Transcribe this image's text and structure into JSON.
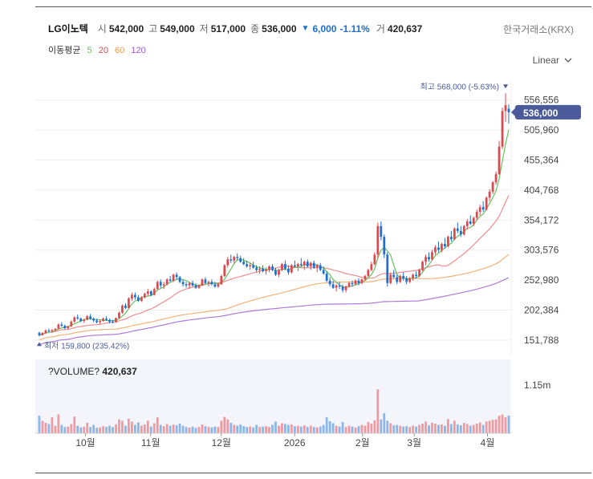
{
  "stock": {
    "name": "LG이노텍",
    "open_label": "시",
    "open": "542,000",
    "high_label": "고",
    "high": "549,000",
    "low_label": "저",
    "low": "517,000",
    "close_label": "종",
    "close": "536,000",
    "change": "6,000",
    "change_pct": "-1.11%",
    "volume_label": "거",
    "volume": "420,637"
  },
  "exchange": "한국거래소(KRX)",
  "ma_legend": {
    "label": "이동평균",
    "periods": [
      "5",
      "20",
      "60",
      "120"
    ]
  },
  "scale_button": "Linear",
  "colors": {
    "up": "#e0484f",
    "down": "#1f6fd1",
    "ma5": "#65c15e",
    "ma20": "#ef8c8e",
    "ma60": "#f2b27a",
    "ma120": "#b07ad8",
    "accent": "#4a5a9a"
  },
  "chart_data": {
    "type": "candlestick",
    "y_ticks": [
      "556,556",
      "505,960",
      "455,364",
      "404,768",
      "354,172",
      "303,576",
      "252,980",
      "202,384",
      "151,788"
    ],
    "y_range": [
      130000,
      590000
    ],
    "x_labels": [
      "10월",
      "11월",
      "12월",
      "2026",
      "2월",
      "3월",
      "4월"
    ],
    "current_price": "536,000",
    "max_annotation": "최고 568,000 (-5.63%)",
    "min_annotation": "최저 159,800 (235.42%)",
    "volume_title": "?VOLUME?",
    "volume_value": "420,637",
    "volume_tick": "1.15m",
    "volume_ymax": 1150000,
    "candles": [
      [
        164000,
        166000,
        158000,
        160000
      ],
      [
        160000,
        165000,
        159800,
        164000
      ],
      [
        164000,
        170000,
        162000,
        168000
      ],
      [
        168000,
        171000,
        165000,
        167000
      ],
      [
        167000,
        170000,
        164000,
        169000
      ],
      [
        169000,
        172000,
        167000,
        171000
      ],
      [
        171000,
        180000,
        170000,
        178000
      ],
      [
        178000,
        182000,
        174000,
        176000
      ],
      [
        176000,
        178000,
        170000,
        172000
      ],
      [
        172000,
        176000,
        170000,
        175000
      ],
      [
        175000,
        185000,
        174000,
        183000
      ],
      [
        183000,
        192000,
        181000,
        190000
      ],
      [
        190000,
        195000,
        186000,
        188000
      ],
      [
        188000,
        190000,
        182000,
        184000
      ],
      [
        184000,
        188000,
        181000,
        186000
      ],
      [
        186000,
        194000,
        185000,
        192000
      ],
      [
        192000,
        196000,
        186000,
        188000
      ],
      [
        188000,
        190000,
        182000,
        185000
      ],
      [
        185000,
        188000,
        180000,
        182000
      ],
      [
        182000,
        186000,
        179000,
        184000
      ],
      [
        184000,
        190000,
        183000,
        188000
      ],
      [
        188000,
        192000,
        184000,
        186000
      ],
      [
        186000,
        188000,
        180000,
        183000
      ],
      [
        183000,
        186000,
        180000,
        182000
      ],
      [
        182000,
        190000,
        181000,
        189000
      ],
      [
        189000,
        200000,
        188000,
        198000
      ],
      [
        198000,
        212000,
        196000,
        210000
      ],
      [
        210000,
        214000,
        204000,
        206000
      ],
      [
        206000,
        224000,
        205000,
        222000
      ],
      [
        222000,
        232000,
        218000,
        228000
      ],
      [
        228000,
        232000,
        220000,
        224000
      ],
      [
        224000,
        228000,
        216000,
        218000
      ],
      [
        218000,
        226000,
        216000,
        224000
      ],
      [
        224000,
        232000,
        222000,
        230000
      ],
      [
        230000,
        238000,
        226000,
        234000
      ],
      [
        234000,
        236000,
        226000,
        228000
      ],
      [
        228000,
        240000,
        227000,
        238000
      ],
      [
        238000,
        252000,
        236000,
        250000
      ],
      [
        250000,
        254000,
        240000,
        244000
      ],
      [
        244000,
        250000,
        238000,
        246000
      ],
      [
        246000,
        256000,
        244000,
        254000
      ],
      [
        254000,
        260000,
        250000,
        252000
      ],
      [
        252000,
        264000,
        250000,
        262000
      ],
      [
        262000,
        266000,
        254000,
        258000
      ],
      [
        258000,
        260000,
        248000,
        250000
      ],
      [
        250000,
        254000,
        242000,
        246000
      ],
      [
        246000,
        250000,
        240000,
        244000
      ],
      [
        244000,
        250000,
        238000,
        248000
      ],
      [
        248000,
        252000,
        242000,
        244000
      ],
      [
        244000,
        248000,
        238000,
        240000
      ],
      [
        240000,
        246000,
        238000,
        244000
      ],
      [
        244000,
        256000,
        243000,
        254000
      ],
      [
        254000,
        258000,
        246000,
        248000
      ],
      [
        248000,
        252000,
        242000,
        250000
      ],
      [
        250000,
        254000,
        244000,
        246000
      ],
      [
        246000,
        250000,
        240000,
        242000
      ],
      [
        242000,
        248000,
        240000,
        246000
      ],
      [
        246000,
        262000,
        245000,
        260000
      ],
      [
        260000,
        280000,
        258000,
        278000
      ],
      [
        278000,
        292000,
        274000,
        288000
      ],
      [
        288000,
        296000,
        282000,
        286000
      ],
      [
        286000,
        294000,
        280000,
        292000
      ],
      [
        292000,
        298000,
        286000,
        290000
      ],
      [
        290000,
        294000,
        282000,
        284000
      ],
      [
        284000,
        290000,
        278000,
        280000
      ],
      [
        280000,
        286000,
        274000,
        276000
      ],
      [
        276000,
        282000,
        270000,
        278000
      ],
      [
        278000,
        284000,
        272000,
        274000
      ],
      [
        274000,
        278000,
        266000,
        270000
      ],
      [
        270000,
        276000,
        264000,
        272000
      ],
      [
        272000,
        278000,
        266000,
        268000
      ],
      [
        268000,
        274000,
        262000,
        270000
      ],
      [
        270000,
        278000,
        266000,
        276000
      ],
      [
        276000,
        280000,
        268000,
        270000
      ],
      [
        270000,
        274000,
        260000,
        262000
      ],
      [
        262000,
        272000,
        258000,
        270000
      ],
      [
        270000,
        282000,
        268000,
        280000
      ],
      [
        280000,
        286000,
        270000,
        272000
      ],
      [
        272000,
        278000,
        262000,
        266000
      ],
      [
        266000,
        280000,
        264000,
        278000
      ],
      [
        278000,
        286000,
        274000,
        276000
      ],
      [
        276000,
        282000,
        268000,
        280000
      ],
      [
        280000,
        290000,
        276000,
        278000
      ],
      [
        278000,
        286000,
        270000,
        284000
      ],
      [
        284000,
        288000,
        274000,
        276000
      ],
      [
        276000,
        284000,
        270000,
        282000
      ],
      [
        282000,
        286000,
        272000,
        274000
      ],
      [
        274000,
        280000,
        266000,
        278000
      ],
      [
        278000,
        282000,
        268000,
        270000
      ],
      [
        270000,
        276000,
        262000,
        264000
      ],
      [
        264000,
        268000,
        250000,
        252000
      ],
      [
        252000,
        258000,
        242000,
        246000
      ],
      [
        246000,
        252000,
        238000,
        240000
      ],
      [
        240000,
        246000,
        234000,
        244000
      ],
      [
        244000,
        250000,
        238000,
        242000
      ],
      [
        242000,
        246000,
        232000,
        236000
      ],
      [
        236000,
        244000,
        232000,
        242000
      ],
      [
        242000,
        250000,
        240000,
        248000
      ],
      [
        248000,
        252000,
        242000,
        246000
      ],
      [
        246000,
        254000,
        244000,
        252000
      ],
      [
        252000,
        256000,
        244000,
        248000
      ],
      [
        248000,
        256000,
        246000,
        254000
      ],
      [
        254000,
        262000,
        252000,
        260000
      ],
      [
        260000,
        272000,
        258000,
        270000
      ],
      [
        270000,
        284000,
        268000,
        280000
      ],
      [
        280000,
        300000,
        278000,
        296000
      ],
      [
        296000,
        350000,
        290000,
        344000
      ],
      [
        344000,
        352000,
        320000,
        326000
      ],
      [
        326000,
        330000,
        290000,
        296000
      ],
      [
        296000,
        300000,
        242000,
        248000
      ],
      [
        248000,
        266000,
        246000,
        262000
      ],
      [
        262000,
        270000,
        256000,
        258000
      ],
      [
        258000,
        262000,
        246000,
        250000
      ],
      [
        250000,
        262000,
        248000,
        260000
      ],
      [
        260000,
        266000,
        252000,
        256000
      ],
      [
        256000,
        260000,
        246000,
        250000
      ],
      [
        250000,
        258000,
        248000,
        256000
      ],
      [
        256000,
        264000,
        252000,
        262000
      ],
      [
        262000,
        268000,
        256000,
        260000
      ],
      [
        260000,
        272000,
        258000,
        270000
      ],
      [
        270000,
        286000,
        268000,
        284000
      ],
      [
        284000,
        296000,
        278000,
        292000
      ],
      [
        292000,
        300000,
        284000,
        288000
      ],
      [
        288000,
        304000,
        286000,
        300000
      ],
      [
        300000,
        312000,
        296000,
        308000
      ],
      [
        308000,
        318000,
        300000,
        304000
      ],
      [
        304000,
        316000,
        300000,
        314000
      ],
      [
        314000,
        324000,
        306000,
        310000
      ],
      [
        310000,
        328000,
        308000,
        326000
      ],
      [
        326000,
        336000,
        318000,
        322000
      ],
      [
        322000,
        342000,
        320000,
        340000
      ],
      [
        340000,
        350000,
        332000,
        336000
      ],
      [
        336000,
        344000,
        326000,
        330000
      ],
      [
        330000,
        346000,
        328000,
        344000
      ],
      [
        344000,
        356000,
        338000,
        352000
      ],
      [
        352000,
        362000,
        346000,
        348000
      ],
      [
        348000,
        360000,
        344000,
        358000
      ],
      [
        358000,
        372000,
        354000,
        368000
      ],
      [
        368000,
        380000,
        362000,
        376000
      ],
      [
        376000,
        386000,
        368000,
        372000
      ],
      [
        372000,
        394000,
        370000,
        392000
      ],
      [
        392000,
        406000,
        386000,
        402000
      ],
      [
        402000,
        420000,
        398000,
        418000
      ],
      [
        418000,
        436000,
        414000,
        432000
      ],
      [
        432000,
        488000,
        430000,
        478000
      ],
      [
        478000,
        544000,
        474000,
        538000
      ],
      [
        538000,
        568000,
        520000,
        548000
      ],
      [
        542000,
        549000,
        517000,
        536000
      ]
    ],
    "volumes": [
      420000,
      300000,
      250000,
      220000,
      380000,
      180000,
      450000,
      200000,
      150000,
      160000,
      220000,
      400000,
      180000,
      140000,
      160000,
      250000,
      150000,
      200000,
      130000,
      140000,
      170000,
      150000,
      180000,
      150000,
      210000,
      330000,
      300000,
      180000,
      350000,
      280000,
      200000,
      260000,
      180000,
      210000,
      300000,
      160000,
      240000,
      380000,
      200000,
      170000,
      220000,
      180000,
      210000,
      190000,
      230000,
      180000,
      150000,
      140000,
      160000,
      130000,
      150000,
      210000,
      170000,
      150000,
      140000,
      160000,
      150000,
      300000,
      390000,
      330000,
      250000,
      200000,
      180000,
      210000,
      170000,
      150000,
      160000,
      140000,
      200000,
      150000,
      160000,
      170000,
      150000,
      200000,
      280000,
      180000,
      240000,
      220000,
      200000,
      210000,
      170000,
      180000,
      160000,
      190000,
      150000,
      180000,
      150000,
      140000,
      160000,
      200000,
      380000,
      290000,
      240000,
      180000,
      160000,
      270000,
      150000,
      180000,
      160000,
      140000,
      170000,
      200000,
      180000,
      270000,
      230000,
      310000,
      1050000,
      330000,
      480000,
      300000,
      240000,
      190000,
      200000,
      180000,
      160000,
      170000,
      150000,
      180000,
      160000,
      200000,
      230000,
      280000,
      190000,
      250000,
      230000,
      200000,
      210000,
      180000,
      340000,
      220000,
      300000,
      210000,
      190000,
      250000,
      220000,
      180000,
      200000,
      230000,
      260000,
      200000,
      280000,
      300000,
      320000,
      330000,
      420000,
      450000,
      380000,
      420637
    ]
  }
}
